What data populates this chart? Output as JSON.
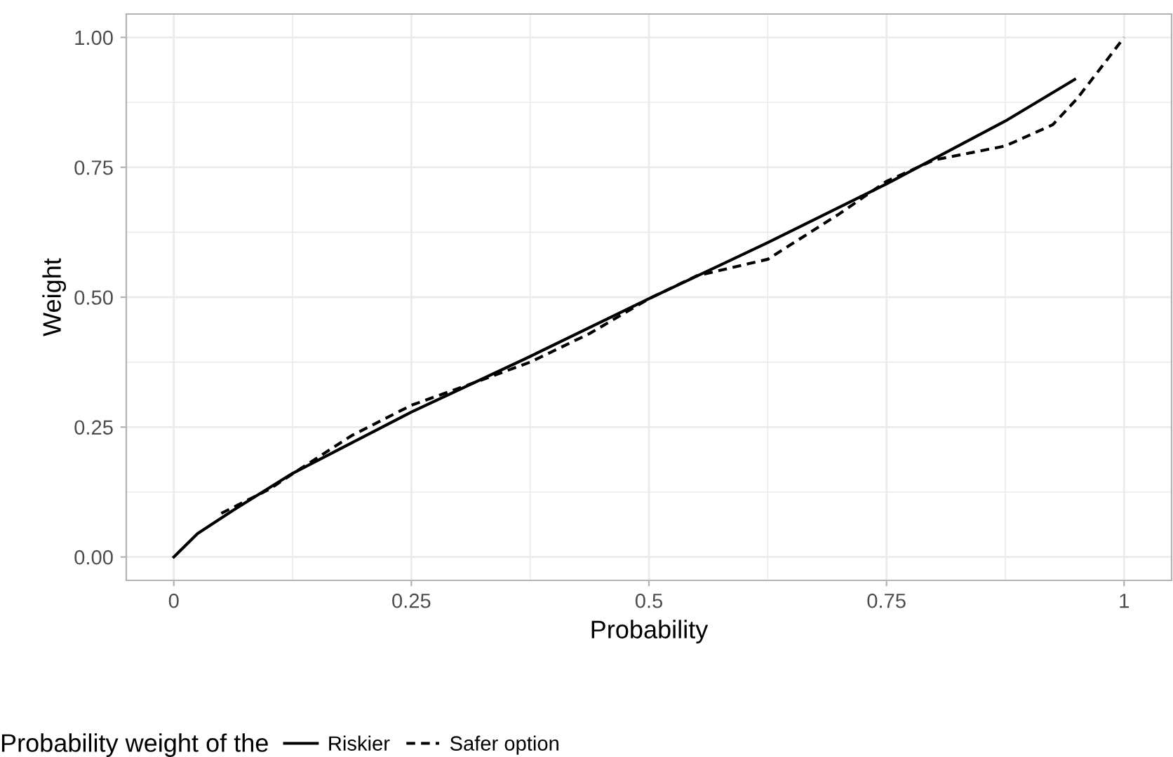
{
  "chart_data": {
    "type": "line",
    "xlabel": "Probability",
    "ylabel": "Weight",
    "legend_title": "Probability weight of the",
    "legend": "bottom",
    "grid": true,
    "xlim": [
      -0.05,
      1.05
    ],
    "ylim": [
      -0.045,
      1.045
    ],
    "xticks": [
      0,
      0.25,
      0.5,
      0.75,
      1
    ],
    "yticks": [
      {
        "value": 0,
        "label": "0.00"
      },
      {
        "value": 0.25,
        "label": "0.25"
      },
      {
        "value": 0.5,
        "label": "0.50"
      },
      {
        "value": 0.75,
        "label": "0.75"
      },
      {
        "value": 1,
        "label": "1.00"
      }
    ],
    "series": [
      {
        "name": "Riskier",
        "color": "#000000",
        "line_style": "solid",
        "x": [
          0,
          0.025,
          0.0625,
          0.125,
          0.1875,
          0.25,
          0.375,
          0.5,
          0.625,
          0.75,
          0.875,
          0.948
        ],
        "values": [
          0,
          0.045,
          0.09,
          0.161,
          0.22,
          0.279,
          0.386,
          0.497,
          0.605,
          0.718,
          0.839,
          0.919
        ]
      },
      {
        "name": "Safer option",
        "color": "#000000",
        "line_style": "dashed",
        "x": [
          0.05,
          0.1,
          0.125,
          0.1875,
          0.25,
          0.3125,
          0.375,
          0.4375,
          0.5,
          0.55,
          0.625,
          0.7,
          0.75,
          0.8,
          0.875,
          0.925,
          0.95,
          0.975,
          1
        ],
        "values": [
          0.084,
          0.13,
          0.16,
          0.234,
          0.292,
          0.333,
          0.375,
          0.43,
          0.497,
          0.541,
          0.573,
          0.66,
          0.723,
          0.764,
          0.791,
          0.832,
          0.881,
          0.94,
          1.0
        ]
      }
    ]
  }
}
